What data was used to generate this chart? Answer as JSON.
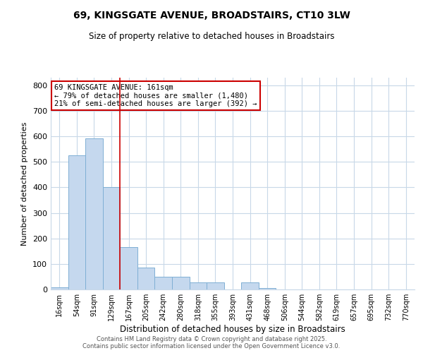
{
  "title_line1": "69, KINGSGATE AVENUE, BROADSTAIRS, CT10 3LW",
  "title_line2": "Size of property relative to detached houses in Broadstairs",
  "xlabel": "Distribution of detached houses by size in Broadstairs",
  "ylabel": "Number of detached properties",
  "categories": [
    "16sqm",
    "54sqm",
    "91sqm",
    "129sqm",
    "167sqm",
    "205sqm",
    "242sqm",
    "280sqm",
    "318sqm",
    "355sqm",
    "393sqm",
    "431sqm",
    "468sqm",
    "506sqm",
    "544sqm",
    "582sqm",
    "619sqm",
    "657sqm",
    "695sqm",
    "732sqm",
    "770sqm"
  ],
  "values": [
    7,
    527,
    593,
    400,
    165,
    85,
    50,
    50,
    27,
    27,
    0,
    27,
    5,
    0,
    0,
    0,
    0,
    0,
    0,
    0,
    0
  ],
  "bar_color": "#c5d8ee",
  "bar_edge_color": "#7fafd4",
  "vline_x_idx": 3,
  "vline_color": "#cc0000",
  "annotation_text": "69 KINGSGATE AVENUE: 161sqm\n← 79% of detached houses are smaller (1,480)\n21% of semi-detached houses are larger (392) →",
  "annotation_box_color": "#cc0000",
  "ylim": [
    0,
    830
  ],
  "yticks": [
    0,
    100,
    200,
    300,
    400,
    500,
    600,
    700,
    800
  ],
  "footer_line1": "Contains HM Land Registry data © Crown copyright and database right 2025.",
  "footer_line2": "Contains public sector information licensed under the Open Government Licence v3.0.",
  "bg_color": "#ffffff",
  "grid_color": "#c8d8e8"
}
